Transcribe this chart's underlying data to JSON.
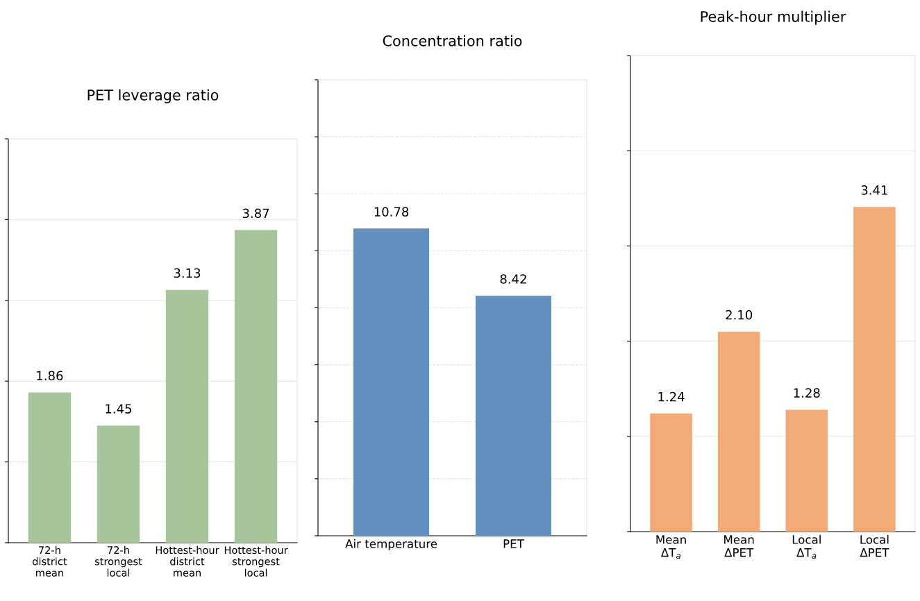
{
  "chart_data": [
    {
      "type": "bar",
      "title": "PET leverage ratio",
      "categories": [
        "72-h\ndistrict\nmean",
        "72-h\nstrongest\nlocal",
        "Hottest-hour\ndistrict\nmean",
        "Hottest-hour\nstrongest\nlocal"
      ],
      "values": [
        1.86,
        1.45,
        3.13,
        3.87
      ],
      "color": "#a6c59b",
      "data_labels": true,
      "ylim": [
        0,
        5
      ],
      "yticks": [
        {
          "value": 0,
          "label": null
        },
        {
          "value": 1,
          "label": null
        },
        {
          "value": 2,
          "label": null
        },
        {
          "value": 3,
          "label": null
        },
        {
          "value": 4,
          "label": null
        },
        {
          "value": 5,
          "label": null
        }
      ],
      "grid": "y",
      "tick_labels": "x"
    },
    {
      "type": "bar",
      "title": "Concentration ratio",
      "categories": [
        "Air temperature",
        "PET"
      ],
      "values": [
        10.78,
        8.42
      ],
      "color": "#6190c0",
      "data_labels": true,
      "ylim": [
        0,
        16
      ],
      "yticks": [
        {
          "value": 0,
          "label": null
        },
        {
          "value": 2,
          "label": null
        },
        {
          "value": 4,
          "label": null
        },
        {
          "value": 6,
          "label": null
        },
        {
          "value": 8,
          "label": null
        },
        {
          "value": 10,
          "label": null
        },
        {
          "value": 12,
          "label": null
        },
        {
          "value": 14,
          "label": null
        },
        {
          "value": 16,
          "label": null
        }
      ],
      "grid": "y",
      "line_style": "dashed",
      "tick_labels": "x"
    },
    {
      "type": "bar",
      "title": "Peak-hour multiplier",
      "categories": [
        "Mean\nΔT$_{a}$",
        "Mean\nΔPET",
        "Local\nΔT$_{a}$",
        "Local\nΔPET"
      ],
      "values": [
        1.24,
        2.1,
        1.28,
        3.41
      ],
      "value_labels": [
        "1.24",
        "2.10",
        "1.28",
        "3.41"
      ],
      "color": "#f4aa74",
      "ylim": [
        0,
        5
      ],
      "yticks": [
        {
          "value": 0,
          "label": null
        },
        {
          "value": 1,
          "label": null
        },
        {
          "value": 2,
          "label": null
        },
        {
          "value": 3,
          "label": null
        },
        {
          "value": 4,
          "label": null
        },
        {
          "value": 5,
          "label": null
        }
      ],
      "grid": "y",
      "tick_labels": "x"
    }
  ]
}
